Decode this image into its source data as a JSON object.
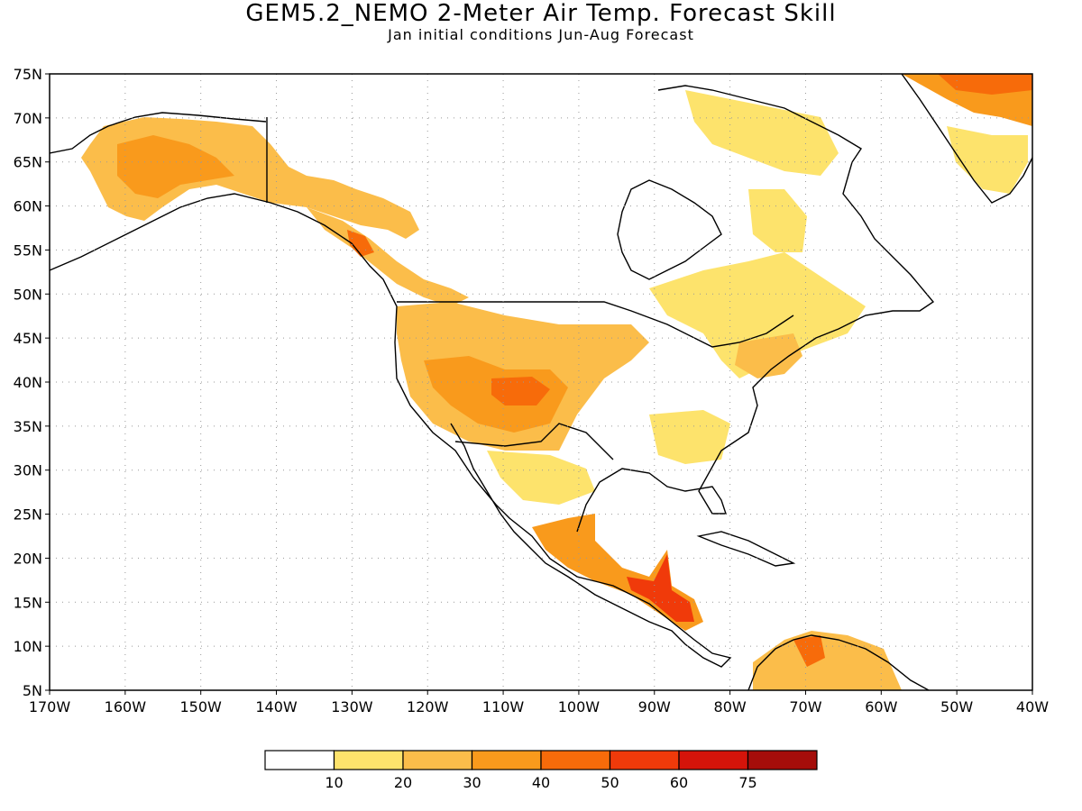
{
  "title": "GEM5.2_NEMO 2-Meter Air Temp. Forecast Skill",
  "subtitle": "Jan initial conditions  Jun-Aug Forecast",
  "map": {
    "lat_labels": [
      "75N",
      "70N",
      "65N",
      "60N",
      "55N",
      "50N",
      "45N",
      "40N",
      "35N",
      "30N",
      "25N",
      "20N",
      "15N",
      "10N",
      "5N"
    ],
    "lon_labels": [
      "170W",
      "160W",
      "150W",
      "140W",
      "130W",
      "120W",
      "110W",
      "100W",
      "90W",
      "80W",
      "70W",
      "60W",
      "50W",
      "40W"
    ]
  },
  "legend": {
    "labels": [
      "10",
      "20",
      "30",
      "40",
      "50",
      "60",
      "75"
    ],
    "colors": [
      "#ffffff",
      "#fde36c",
      "#fbbd4a",
      "#f99a1c",
      "#f76b0a",
      "#f03a0a",
      "#d5140a",
      "#a50d0a"
    ]
  }
}
